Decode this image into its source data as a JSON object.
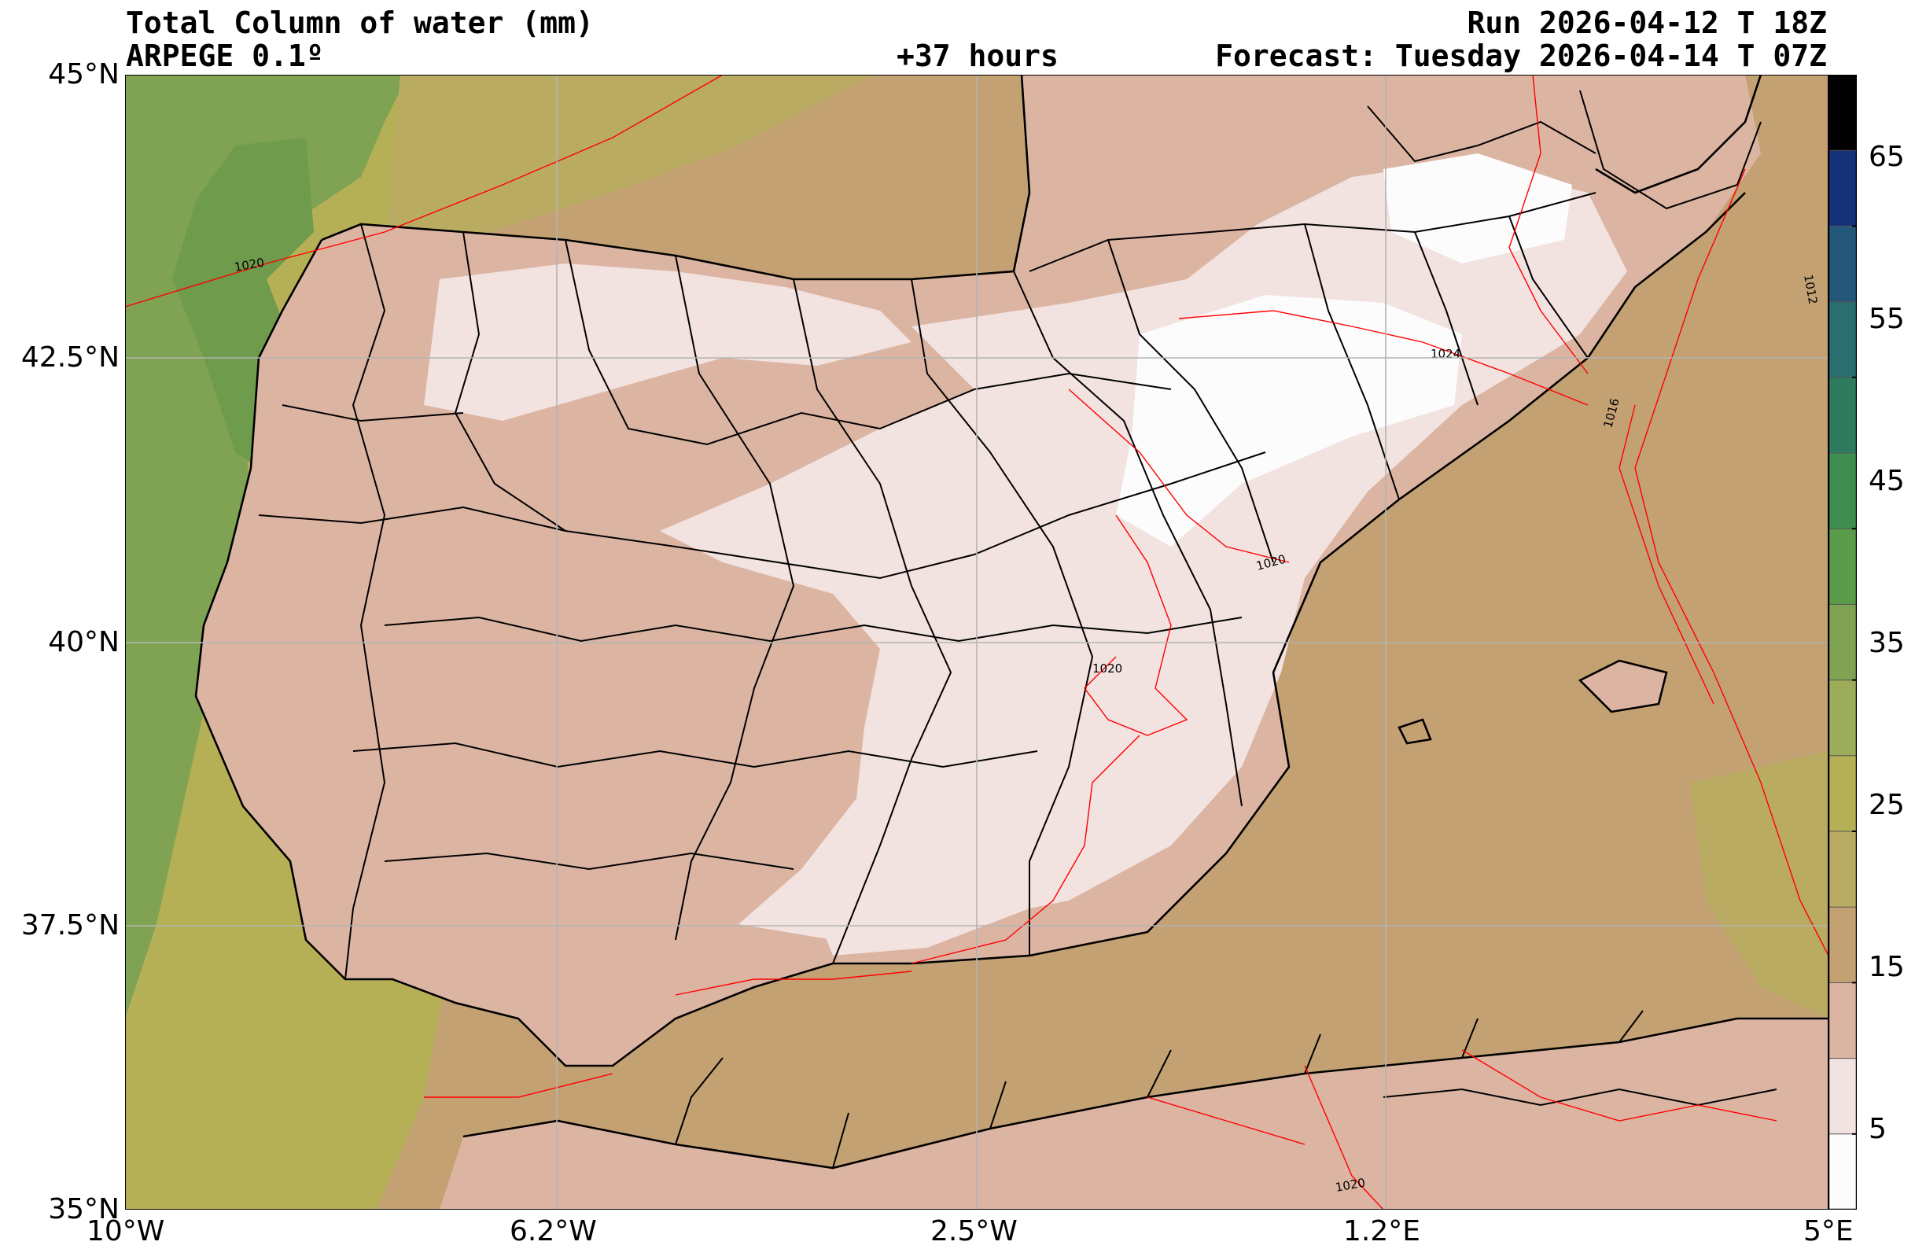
{
  "header": {
    "title": "Total Column of water (mm)",
    "model": "ARPEGE 0.1º",
    "lead": "+37 hours",
    "run": "Run 2026-04-12 T 18Z",
    "forecast": "Forecast: Tuesday 2026-04-14 T 07Z"
  },
  "axes": {
    "lon_ticks": [
      "10°W",
      "6.2°W",
      "2.5°W",
      "1.2°E",
      "5°E"
    ],
    "lat_ticks": [
      "45°N",
      "42.5°N",
      "40°N",
      "37.5°N",
      "35°N"
    ],
    "extent": {
      "lon": [
        -10,
        5
      ],
      "lat": [
        35,
        45
      ]
    },
    "grid": true
  },
  "colorbar": {
    "ticks": [
      "5",
      "15",
      "25",
      "35",
      "45",
      "55",
      "65"
    ],
    "levels": [
      0,
      5,
      10,
      15,
      20,
      25,
      30,
      35,
      40,
      45,
      50,
      55,
      60,
      65,
      70
    ],
    "colors": [
      "#fdfcfd",
      "#f2e2e0",
      "#dcb4a2",
      "#c3a173",
      "#b9ab62",
      "#b5b056",
      "#9dac58",
      "#7fa352",
      "#5b9c4a",
      "#3f8e50",
      "#2e7a5e",
      "#2a6e72",
      "#24587a",
      "#14317a",
      "#000000"
    ]
  },
  "isobars": {
    "labels": [
      "1020",
      "1020",
      "1020",
      "1016",
      "1012",
      "1024",
      "1020"
    ],
    "color": "#ff0000"
  },
  "colors": {
    "land_dry": "#dcb4a2",
    "land_very_dry": "#f2e2e0",
    "sea_mid": "#c3a173",
    "sea_atlantic": "#b5b056",
    "sea_moist": "#7fa352",
    "border": "#000000",
    "gridline": "#b4b4b4"
  }
}
